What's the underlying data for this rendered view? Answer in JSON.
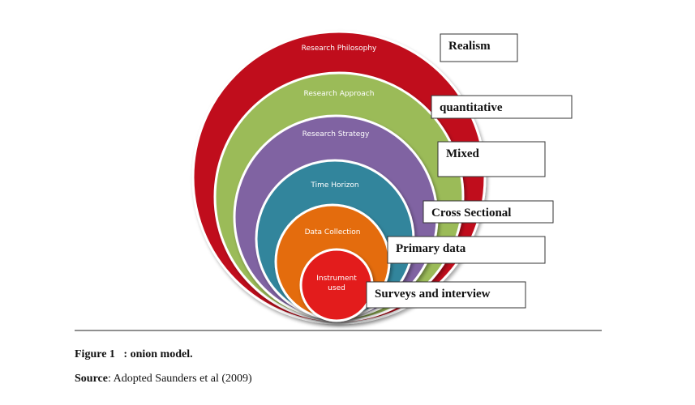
{
  "layers": [
    {
      "label_lines": [
        "Research Philosophy"
      ],
      "box": "Realism"
    },
    {
      "label_lines": [
        "Research  Approach"
      ],
      "box": "quantitative"
    },
    {
      "label_lines": [
        "Research Strategy"
      ],
      "box": "Mixed"
    },
    {
      "label_lines": [
        "Time Horizon"
      ],
      "box": "Cross Sectional"
    },
    {
      "label_lines": [
        "Data Collection"
      ],
      "box": "Primary data"
    },
    {
      "label_lines": [
        "Instrument",
        "used"
      ],
      "box": "Surveys and interview"
    }
  ],
  "caption": {
    "label": "Figure 1",
    "text": "   : onion model."
  },
  "source": {
    "label": "Source",
    "text": ": Adopted Saunders et al (2009)"
  }
}
